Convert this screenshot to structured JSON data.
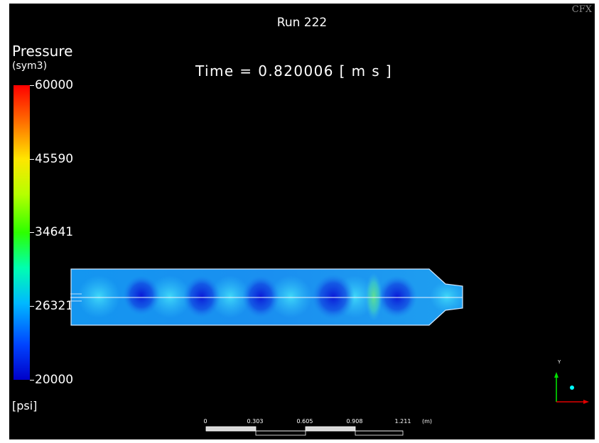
{
  "title": "Run 222",
  "time": "Time = 0.820006 [ m s ]",
  "logo": "CFX",
  "legend": {
    "title": "Pressure",
    "subtitle": "(sym3)",
    "unit": "[psi]",
    "ticks": [
      "60000",
      "45590",
      "34641",
      "26321",
      "20000"
    ],
    "colors": [
      "#ff0000",
      "#ff6a00",
      "#ffe600",
      "#2dff00",
      "#00b9ff",
      "#0044ff",
      "#0000c8"
    ]
  },
  "scale_bar": {
    "labels": [
      "0",
      "0.303",
      "0.605",
      "0.908",
      "1.211"
    ],
    "unit": "(m)"
  },
  "axes": {
    "y_label": "Y",
    "colors": {
      "y": "#00ff00",
      "x": "#ff0000",
      "z": "#00ffff"
    }
  }
}
